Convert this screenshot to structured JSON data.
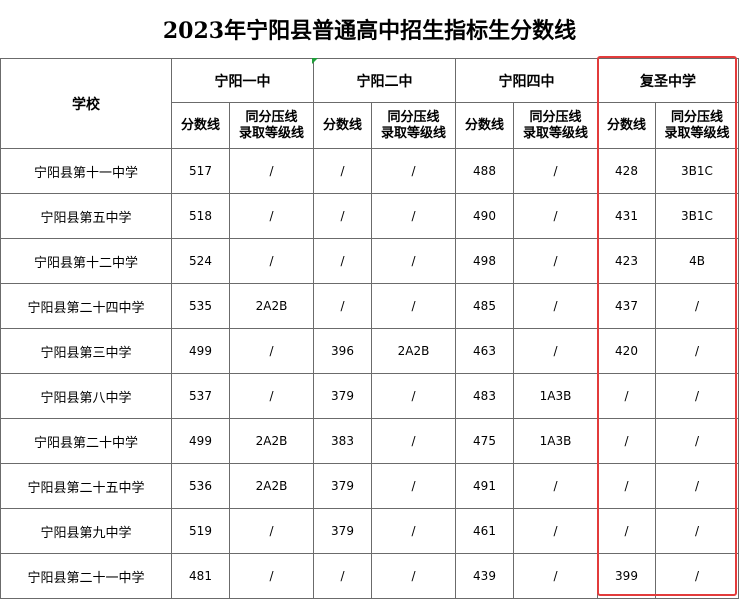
{
  "title": "2023年宁阳县普通高中招生指标生分数线",
  "header": {
    "school_label": "学校",
    "groups": [
      "宁阳一中",
      "宁阳二中",
      "宁阳四中",
      "复圣中学"
    ],
    "sub_score": "分数线",
    "sub_grade_l1": "同分压线",
    "sub_grade_l2": "录取等级线"
  },
  "rows": [
    {
      "school": "宁阳县第十一中学",
      "c": [
        "517",
        "/",
        "/",
        "/",
        "488",
        "/",
        "428",
        "3B1C"
      ]
    },
    {
      "school": "宁阳县第五中学",
      "c": [
        "518",
        "/",
        "/",
        "/",
        "490",
        "/",
        "431",
        "3B1C"
      ]
    },
    {
      "school": "宁阳县第十二中学",
      "c": [
        "524",
        "/",
        "/",
        "/",
        "498",
        "/",
        "423",
        "4B"
      ]
    },
    {
      "school": "宁阳县第二十四中学",
      "c": [
        "535",
        "2A2B",
        "/",
        "/",
        "485",
        "/",
        "437",
        "/"
      ]
    },
    {
      "school": "宁阳县第三中学",
      "c": [
        "499",
        "/",
        "396",
        "2A2B",
        "463",
        "/",
        "420",
        "/"
      ]
    },
    {
      "school": "宁阳县第八中学",
      "c": [
        "537",
        "/",
        "379",
        "/",
        "483",
        "1A3B",
        "/",
        "/"
      ]
    },
    {
      "school": "宁阳县第二十中学",
      "c": [
        "499",
        "2A2B",
        "383",
        "/",
        "475",
        "1A3B",
        "/",
        "/"
      ]
    },
    {
      "school": "宁阳县第二十五中学",
      "c": [
        "536",
        "2A2B",
        "379",
        "/",
        "491",
        "/",
        "/",
        "/"
      ]
    },
    {
      "school": "宁阳县第九中学",
      "c": [
        "519",
        "/",
        "379",
        "/",
        "461",
        "/",
        "/",
        "/"
      ]
    },
    {
      "school": "宁阳县第二十一中学",
      "c": [
        "481",
        "/",
        "/",
        "/",
        "439",
        "/",
        "399",
        "/"
      ]
    }
  ],
  "colors": {
    "highlight_border": "#e23b3b",
    "grid": "#6b6b6b"
  }
}
